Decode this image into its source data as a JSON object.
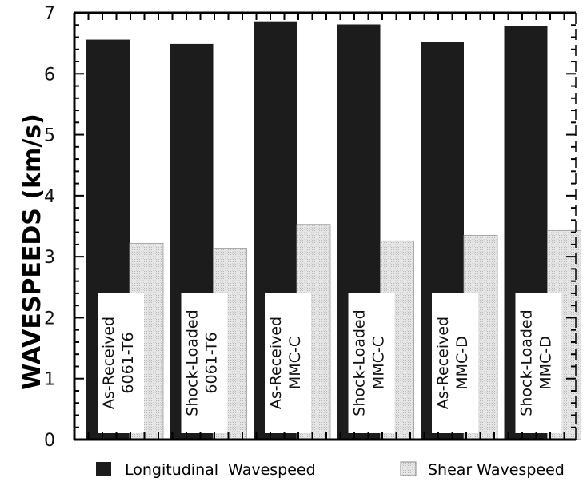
{
  "chart_data": {
    "type": "bar",
    "title": "",
    "xlabel": "",
    "ylabel": "WAVESPEEDS (km/s)",
    "ylim": [
      0,
      7
    ],
    "yticks": [
      "0",
      "1",
      "2",
      "3",
      "4",
      "5",
      "6",
      "7"
    ],
    "grid": false,
    "legend_placement": "bottom",
    "categories": [
      [
        "As-Received",
        "6061-T6"
      ],
      [
        "Shock-Loaded",
        "6061-T6"
      ],
      [
        "As-Received",
        "MMC-C"
      ],
      [
        "Shock-Loaded",
        "MMC-C"
      ],
      [
        "As-Received",
        "MMC-D"
      ],
      [
        "Shock-Loaded",
        "MMC-D"
      ]
    ],
    "series": [
      {
        "name": "Longitudinal  Wavespeed",
        "color": "#1c1c1c",
        "values": [
          6.56,
          6.49,
          6.86,
          6.81,
          6.52,
          6.79
        ]
      },
      {
        "name": "Shear Wavespeed",
        "color": "#e6e6e6",
        "values": [
          3.22,
          3.14,
          3.53,
          3.26,
          3.35,
          3.43
        ]
      }
    ]
  }
}
